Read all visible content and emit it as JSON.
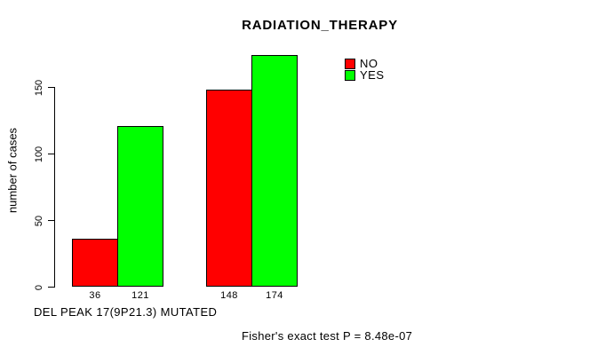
{
  "page": {
    "background_color": "#ffffff",
    "text_color": "#000000"
  },
  "chart_data": {
    "type": "bar",
    "title": "RADIATION_THERAPY",
    "ylabel": "number of cases",
    "xlabel": "DEL PEAK 17(9P21.3) MUTATED",
    "annotation": "Fisher's exact test P = 8.48e-07",
    "categories": [
      "",
      ""
    ],
    "series": [
      {
        "name": "NO",
        "color": "#ff0000",
        "values": [
          36,
          148
        ]
      },
      {
        "name": "YES",
        "color": "#00ff00",
        "values": [
          121,
          174
        ]
      }
    ],
    "bar_value_labels": [
      36,
      121,
      148,
      174
    ],
    "yticks": [
      0,
      50,
      100,
      150
    ],
    "ylim": [
      0,
      174
    ],
    "grid": false,
    "legend_position": "top-right"
  }
}
